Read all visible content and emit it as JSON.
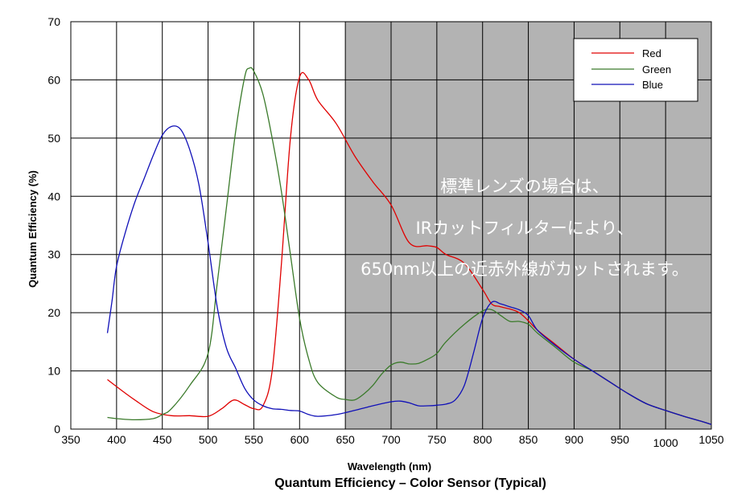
{
  "chart_data": {
    "type": "line",
    "title": "Quantum Efficiency – Color Sensor (Typical)",
    "xlabel": "Wavelength (nm)",
    "ylabel": "Quantum Efficiency (%)",
    "xlim": [
      350,
      1050
    ],
    "ylim": [
      0,
      70
    ],
    "x_ticks": [
      "350",
      "400",
      "450",
      "500",
      "550",
      "600",
      "650",
      "700",
      "750",
      "800",
      "850",
      "900",
      "950",
      "1000",
      "1050"
    ],
    "y_ticks": [
      "0",
      "10",
      "20",
      "30",
      "40",
      "50",
      "60",
      "70"
    ],
    "grid": true,
    "legend_position": "top-right",
    "shaded_region": {
      "from": 650,
      "to": 1050,
      "color": "#b3b3b3"
    },
    "annotation": [
      "標準レンズの場合は、",
      "IRカットフィルターにより、",
      "650nm以上の近赤外線がカットされます。"
    ],
    "series": [
      {
        "name": "Red",
        "color": "#e00000",
        "points": [
          [
            390,
            8.5
          ],
          [
            400,
            7.3
          ],
          [
            420,
            5
          ],
          [
            440,
            3
          ],
          [
            460,
            2.3
          ],
          [
            480,
            2.3
          ],
          [
            500,
            2.2
          ],
          [
            515,
            3.5
          ],
          [
            528,
            5
          ],
          [
            540,
            4.2
          ],
          [
            550,
            3.5
          ],
          [
            560,
            4
          ],
          [
            570,
            10
          ],
          [
            580,
            28
          ],
          [
            590,
            50
          ],
          [
            600,
            60.5
          ],
          [
            610,
            60
          ],
          [
            620,
            56.5
          ],
          [
            640,
            52.5
          ],
          [
            660,
            47
          ],
          [
            680,
            42.5
          ],
          [
            700,
            38.5
          ],
          [
            720,
            32
          ],
          [
            740,
            31.5
          ],
          [
            750,
            31.2
          ],
          [
            760,
            30
          ],
          [
            780,
            28.5
          ],
          [
            800,
            24
          ],
          [
            810,
            21.5
          ],
          [
            820,
            21
          ],
          [
            840,
            20
          ],
          [
            860,
            17
          ],
          [
            880,
            14.5
          ],
          [
            900,
            12
          ],
          [
            920,
            10
          ],
          [
            940,
            8
          ],
          [
            960,
            6
          ],
          [
            980,
            4.3
          ],
          [
            1000,
            3.2
          ],
          [
            1020,
            2.2
          ],
          [
            1040,
            1.3
          ],
          [
            1050,
            0.8
          ]
        ]
      },
      {
        "name": "Green",
        "color": "#3a7a2a",
        "points": [
          [
            390,
            2
          ],
          [
            400,
            1.8
          ],
          [
            420,
            1.6
          ],
          [
            440,
            1.8
          ],
          [
            450,
            2.5
          ],
          [
            460,
            3.5
          ],
          [
            480,
            7.5
          ],
          [
            500,
            13
          ],
          [
            510,
            25
          ],
          [
            520,
            38
          ],
          [
            530,
            51
          ],
          [
            540,
            60.5
          ],
          [
            545,
            62
          ],
          [
            550,
            61.5
          ],
          [
            560,
            57.5
          ],
          [
            570,
            50
          ],
          [
            580,
            41
          ],
          [
            590,
            30
          ],
          [
            600,
            19
          ],
          [
            610,
            12
          ],
          [
            620,
            8
          ],
          [
            640,
            5.5
          ],
          [
            650,
            5.1
          ],
          [
            660,
            5
          ],
          [
            670,
            6
          ],
          [
            680,
            7.5
          ],
          [
            690,
            9.5
          ],
          [
            700,
            11
          ],
          [
            710,
            11.5
          ],
          [
            720,
            11.2
          ],
          [
            730,
            11.3
          ],
          [
            740,
            12
          ],
          [
            750,
            13
          ],
          [
            760,
            15
          ],
          [
            780,
            18
          ],
          [
            800,
            20.3
          ],
          [
            810,
            20.5
          ],
          [
            820,
            19.5
          ],
          [
            830,
            18.5
          ],
          [
            840,
            18.5
          ],
          [
            850,
            18
          ],
          [
            860,
            16.5
          ],
          [
            880,
            14
          ],
          [
            900,
            11.5
          ],
          [
            920,
            10
          ],
          [
            940,
            8
          ],
          [
            960,
            6
          ],
          [
            980,
            4.3
          ],
          [
            1000,
            3.2
          ],
          [
            1020,
            2.2
          ],
          [
            1040,
            1.3
          ],
          [
            1050,
            0.8
          ]
        ]
      },
      {
        "name": "Blue",
        "color": "#1010b8",
        "points": [
          [
            390,
            16.5
          ],
          [
            395,
            22
          ],
          [
            400,
            28
          ],
          [
            410,
            34
          ],
          [
            420,
            39
          ],
          [
            430,
            43
          ],
          [
            440,
            47
          ],
          [
            450,
            50.5
          ],
          [
            460,
            52
          ],
          [
            470,
            51.5
          ],
          [
            480,
            48
          ],
          [
            490,
            42
          ],
          [
            500,
            32
          ],
          [
            510,
            21
          ],
          [
            520,
            14
          ],
          [
            530,
            10.5
          ],
          [
            540,
            7
          ],
          [
            550,
            5
          ],
          [
            560,
            4
          ],
          [
            570,
            3.5
          ],
          [
            580,
            3.4
          ],
          [
            590,
            3.2
          ],
          [
            600,
            3.1
          ],
          [
            610,
            2.5
          ],
          [
            620,
            2.2
          ],
          [
            640,
            2.5
          ],
          [
            660,
            3.2
          ],
          [
            680,
            4
          ],
          [
            700,
            4.7
          ],
          [
            710,
            4.8
          ],
          [
            720,
            4.5
          ],
          [
            730,
            4
          ],
          [
            740,
            4
          ],
          [
            750,
            4.1
          ],
          [
            760,
            4.3
          ],
          [
            770,
            5
          ],
          [
            780,
            7.5
          ],
          [
            790,
            13
          ],
          [
            800,
            19
          ],
          [
            810,
            21.8
          ],
          [
            820,
            21.5
          ],
          [
            830,
            21
          ],
          [
            840,
            20.5
          ],
          [
            850,
            19.5
          ],
          [
            860,
            17
          ],
          [
            880,
            14.3
          ],
          [
            900,
            12
          ],
          [
            920,
            10
          ],
          [
            940,
            8
          ],
          [
            960,
            6
          ],
          [
            980,
            4.3
          ],
          [
            1000,
            3.2
          ],
          [
            1020,
            2.2
          ],
          [
            1040,
            1.3
          ],
          [
            1050,
            0.8
          ]
        ]
      }
    ]
  }
}
